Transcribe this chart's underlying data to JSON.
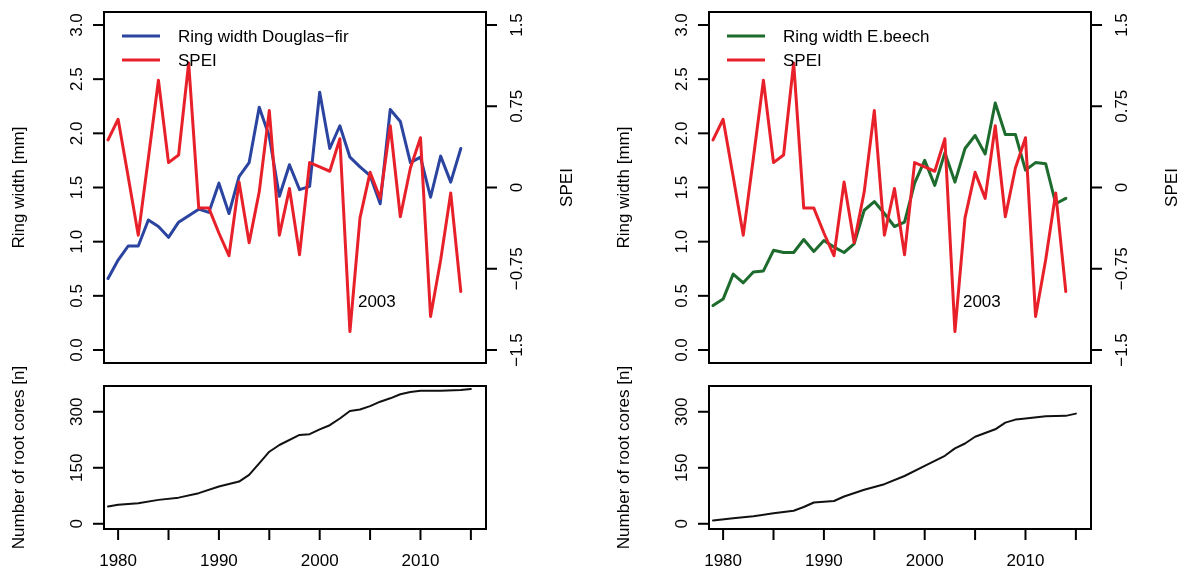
{
  "chart_data": [
    {
      "type": "line",
      "ylabel": "Ring width [mm]",
      "y2label": "SPEI",
      "legend": "top left",
      "tick_labels": "y",
      "x": [
        1979,
        1980,
        1981,
        1982,
        1983,
        1984,
        1985,
        1986,
        1987,
        1988,
        1989,
        1990,
        1991,
        1992,
        1993,
        1994,
        1995,
        1996,
        1997,
        1998,
        1999,
        2000,
        2001,
        2002,
        2003,
        2004,
        2005,
        2006,
        2007,
        2008,
        2009,
        2010,
        2011,
        2012,
        2013,
        2014
      ],
      "xlim": [
        1978.6,
        2016.5
      ],
      "ylim": [
        -0.12,
        3.12
      ],
      "y2lim": [
        -1.62,
        1.62
      ],
      "yticks": [
        {
          "value": 0,
          "label": "0.0"
        },
        0.5,
        {
          "value": 1,
          "label": "1.0"
        },
        1.5,
        {
          "value": 2,
          "label": "2.0"
        },
        2.5,
        {
          "value": 3,
          "label": "3.0"
        }
      ],
      "y2ticks": [
        -1.5,
        -0.75,
        0,
        0.75,
        1.5
      ],
      "series": [
        {
          "name": "Ring width Douglas−fir",
          "color": "#2b44a0",
          "values": [
            0.66,
            0.83,
            0.96,
            0.96,
            1.2,
            1.14,
            1.04,
            1.18,
            1.24,
            1.3,
            1.27,
            1.54,
            1.26,
            1.6,
            1.73,
            2.24,
            1.97,
            1.42,
            1.71,
            1.48,
            1.51,
            2.38,
            1.86,
            2.07,
            1.78,
            1.69,
            1.61,
            1.35,
            2.22,
            2.11,
            1.73,
            1.78,
            1.41,
            1.79,
            1.55,
            1.86
          ]
        },
        {
          "name": "SPEI",
          "color": "#e8202a",
          "axis": "y2",
          "values": [
            0.44,
            0.63,
            0.1,
            -0.44,
            0.27,
            0.99,
            0.23,
            0.3,
            1.15,
            -0.19,
            -0.19,
            -0.42,
            -0.63,
            0.05,
            -0.51,
            -0.04,
            0.71,
            -0.44,
            -0.01,
            -0.62,
            0.23,
            0.19,
            0.15,
            0.45,
            -1.33,
            -0.28,
            0.14,
            -0.1,
            0.57,
            -0.27,
            0.18,
            0.46,
            -1.19,
            -0.67,
            -0.05,
            -0.96
          ]
        }
      ],
      "annotations": [
        {
          "text": "2003",
          "x": 2003,
          "y": 0.4
        }
      ]
    },
    {
      "type": "line",
      "ylabel": "Ring width [mm]",
      "y2label": "SPEI",
      "legend": "top left",
      "tick_labels": "y",
      "x": [
        1979,
        1980,
        1981,
        1982,
        1983,
        1984,
        1985,
        1986,
        1987,
        1988,
        1989,
        1990,
        1991,
        1992,
        1993,
        1994,
        1995,
        1996,
        1997,
        1998,
        1999,
        2000,
        2001,
        2002,
        2003,
        2004,
        2005,
        2006,
        2007,
        2008,
        2009,
        2010,
        2011,
        2012,
        2013,
        2014
      ],
      "xlim": [
        1978.6,
        2016.5
      ],
      "ylim": [
        -0.12,
        3.12
      ],
      "y2lim": [
        -1.62,
        1.62
      ],
      "yticks": [
        {
          "value": 0,
          "label": "0.0"
        },
        0.5,
        {
          "value": 1,
          "label": "1.0"
        },
        1.5,
        {
          "value": 2,
          "label": "2.0"
        },
        2.5,
        {
          "value": 3,
          "label": "3.0"
        }
      ],
      "y2ticks": [
        -1.5,
        -0.75,
        0,
        0.75,
        1.5
      ],
      "series": [
        {
          "name": "Ring width E.beech",
          "color": "#1e6b2e",
          "values": [
            0.41,
            0.47,
            0.7,
            0.62,
            0.72,
            0.73,
            0.92,
            0.9,
            0.9,
            1.02,
            0.91,
            1.01,
            0.95,
            0.9,
            0.98,
            1.29,
            1.37,
            1.26,
            1.14,
            1.18,
            1.54,
            1.75,
            1.52,
            1.82,
            1.55,
            1.86,
            1.98,
            1.81,
            2.28,
            1.99,
            1.99,
            1.66,
            1.73,
            1.72,
            1.35,
            1.4
          ]
        },
        {
          "name": "SPEI",
          "color": "#e8202a",
          "axis": "y2",
          "values": [
            0.44,
            0.63,
            0.1,
            -0.44,
            0.27,
            0.99,
            0.23,
            0.3,
            1.15,
            -0.19,
            -0.19,
            -0.42,
            -0.63,
            0.05,
            -0.51,
            -0.04,
            0.71,
            -0.44,
            -0.01,
            -0.62,
            0.23,
            0.19,
            0.15,
            0.45,
            -1.33,
            -0.28,
            0.14,
            -0.1,
            0.57,
            -0.27,
            0.18,
            0.46,
            -1.19,
            -0.67,
            -0.05,
            -0.96
          ]
        }
      ],
      "annotations": [
        {
          "text": "2003",
          "x": 2003,
          "y": 0.4
        }
      ]
    },
    {
      "type": "line",
      "ylabel": "Number of root cores [n]",
      "xlim": [
        1978.6,
        2016.5
      ],
      "ylim": [
        -14,
        369
      ],
      "xticks": [
        1980,
        {
          "value": 1985,
          "label": null
        },
        1990,
        {
          "value": 1995,
          "label": null
        },
        2000,
        {
          "value": 2005,
          "label": null
        },
        2010,
        {
          "value": 2015,
          "label": null
        }
      ],
      "yticks": [
        0,
        150,
        300
      ],
      "series": [
        {
          "color": "#111111",
          "x": [
            1979,
            1980,
            1982,
            1984,
            1986,
            1988,
            1990,
            1992,
            1993,
            1994,
            1995,
            1996,
            1998,
            1999,
            2000,
            2001,
            2002,
            2003,
            2004,
            2005,
            2006,
            2007,
            2008,
            2009,
            2010,
            2012,
            2014,
            2015
          ],
          "values": [
            46,
            51,
            55,
            64,
            70,
            82,
            100,
            113,
            131,
            162,
            193,
            211,
            238,
            240,
            253,
            264,
            282,
            302,
            306,
            315,
            327,
            336,
            347,
            353,
            356,
            356,
            358,
            361
          ]
        }
      ]
    },
    {
      "type": "line",
      "ylabel": "Number of root cores [n]",
      "xlim": [
        1978.6,
        2016.5
      ],
      "ylim": [
        -14,
        369
      ],
      "xticks": [
        1980,
        {
          "value": 1985,
          "label": null
        },
        1990,
        {
          "value": 1995,
          "label": null
        },
        2000,
        {
          "value": 2005,
          "label": null
        },
        2010,
        {
          "value": 2015,
          "label": null
        }
      ],
      "yticks": [
        0,
        150,
        300
      ],
      "series": [
        {
          "color": "#111111",
          "x": [
            1979,
            1981,
            1983,
            1985,
            1987,
            1988,
            1989,
            1991,
            1992,
            1994,
            1996,
            1998,
            2000,
            2002,
            2003,
            2004,
            2005,
            2007,
            2008,
            2009,
            2010,
            2012,
            2014,
            2015
          ],
          "values": [
            9,
            15,
            20,
            28,
            35,
            45,
            57,
            61,
            73,
            91,
            106,
            128,
            155,
            182,
            202,
            215,
            233,
            253,
            271,
            279,
            282,
            288,
            289,
            295
          ]
        }
      ]
    }
  ]
}
